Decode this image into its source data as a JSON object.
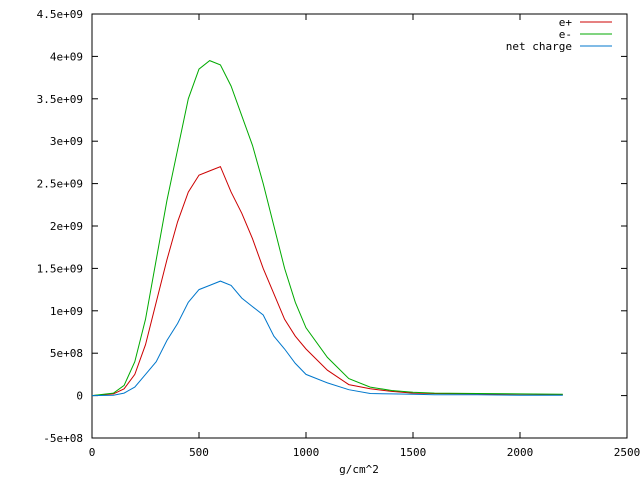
{
  "chart_data": {
    "type": "line",
    "title": "",
    "xlabel": "g/cm^2",
    "ylabel": "",
    "xlim": [
      0,
      2500
    ],
    "ylim": [
      -500000000,
      4500000000
    ],
    "x_ticks": [
      {
        "value": 0,
        "label": "0"
      },
      {
        "value": 500,
        "label": "500"
      },
      {
        "value": 1000,
        "label": "1000"
      },
      {
        "value": 1500,
        "label": "1500"
      },
      {
        "value": 2000,
        "label": "2000"
      },
      {
        "value": 2500,
        "label": "2500"
      }
    ],
    "y_ticks": [
      {
        "value": -500000000,
        "label": "-5e+08"
      },
      {
        "value": 0,
        "label": "0"
      },
      {
        "value": 500000000,
        "label": "5e+08"
      },
      {
        "value": 1000000000,
        "label": "1e+09"
      },
      {
        "value": 1500000000,
        "label": "1.5e+09"
      },
      {
        "value": 2000000000,
        "label": "2e+09"
      },
      {
        "value": 2500000000,
        "label": "2.5e+09"
      },
      {
        "value": 3000000000,
        "label": "3e+09"
      },
      {
        "value": 3500000000,
        "label": "3.5e+09"
      },
      {
        "value": 4000000000,
        "label": "4e+09"
      },
      {
        "value": 4500000000,
        "label": "4.5e+09"
      }
    ],
    "grid": false,
    "legend_position": "top-right",
    "x": [
      0,
      100,
      150,
      200,
      250,
      300,
      350,
      400,
      450,
      500,
      550,
      600,
      650,
      700,
      750,
      800,
      850,
      900,
      950,
      1000,
      1100,
      1200,
      1300,
      1400,
      1500,
      1600,
      1800,
      2000,
      2200
    ],
    "series": [
      {
        "name": "e+",
        "color": "#cc0000",
        "values": [
          0,
          20000000,
          80000000,
          250000000,
          600000000,
          1100000000,
          1600000000,
          2050000000,
          2400000000,
          2600000000,
          2650000000,
          2700000000,
          2400000000,
          2150000000,
          1850000000,
          1500000000,
          1200000000,
          900000000,
          700000000,
          550000000,
          300000000,
          130000000,
          80000000,
          50000000,
          30000000,
          25000000,
          20000000,
          15000000,
          10000000
        ]
      },
      {
        "name": "e-",
        "color": "#00aa00",
        "values": [
          0,
          30000000,
          120000000,
          400000000,
          900000000,
          1600000000,
          2300000000,
          2900000000,
          3500000000,
          3850000000,
          3950000000,
          3900000000,
          3650000000,
          3300000000,
          2950000000,
          2500000000,
          2000000000,
          1500000000,
          1100000000,
          800000000,
          450000000,
          200000000,
          100000000,
          60000000,
          40000000,
          30000000,
          25000000,
          20000000,
          15000000
        ]
      },
      {
        "name": "net charge",
        "color": "#0077cc",
        "values": [
          0,
          5000000,
          30000000,
          100000000,
          250000000,
          400000000,
          650000000,
          850000000,
          1100000000,
          1250000000,
          1300000000,
          1350000000,
          1300000000,
          1150000000,
          1050000000,
          950000000,
          700000000,
          550000000,
          380000000,
          250000000,
          150000000,
          70000000,
          25000000,
          20000000,
          15000000,
          10000000,
          10000000,
          5000000,
          5000000
        ]
      }
    ]
  }
}
